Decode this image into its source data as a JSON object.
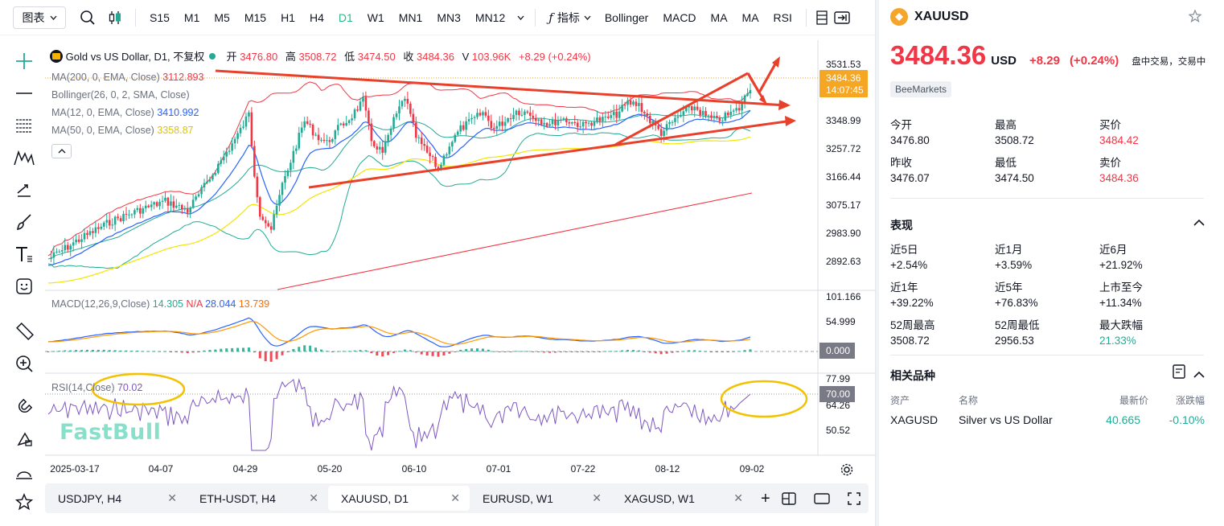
{
  "toolbar": {
    "chart_type": "图表",
    "timeframes": [
      "S15",
      "M1",
      "M5",
      "M15",
      "H1",
      "H4",
      "D1",
      "W1",
      "MN1",
      "MN3",
      "MN12"
    ],
    "active_timeframe": "D1",
    "indicators_label": "指标",
    "indicators": [
      "Bollinger",
      "MACD",
      "MA",
      "MA",
      "RSI"
    ]
  },
  "chart": {
    "title": "Gold vs US Dollar, D1, 不复权",
    "ohlc": {
      "open_label": "开",
      "open": "3476.80",
      "high_label": "高",
      "high": "3508.72",
      "low_label": "低",
      "low": "3474.50",
      "close_label": "收",
      "close": "3484.36",
      "vol_label": "V",
      "vol": "103.96K",
      "change": "+8.29 (+0.24%)"
    },
    "ma200": {
      "label": "MA(200, 0, EMA, Close)",
      "value": "3112.893",
      "color": "#f23645"
    },
    "bollinger": {
      "label": "Bollinger(26, 0, 2, SMA, Close)",
      "value": "",
      "color": "#22ab94"
    },
    "ma12": {
      "label": "MA(12, 0, EMA, Close)",
      "value": "3410.992",
      "color": "#2962ff"
    },
    "ma50": {
      "label": "MA(50, 0, EMA, Close)",
      "value": "3358.87",
      "color": "#f2e600"
    },
    "price_axis": [
      "3531.53",
      "3348.99",
      "3257.72",
      "3166.44",
      "3075.17",
      "2983.90",
      "2892.63"
    ],
    "last_price": "3484.36",
    "countdown": "14:07:45",
    "macd": {
      "label": "MACD(12,26,9,Close)",
      "v1": "14.305",
      "v2": "N/A",
      "v3": "28.044",
      "v4": "13.739",
      "axis": [
        "101.166",
        "54.999"
      ],
      "badge": "0.000"
    },
    "rsi": {
      "label": "RSI(14,Close)",
      "value": "70.02",
      "axis": [
        "77.99",
        "64.26",
        "50.52"
      ],
      "badge": "70.00"
    },
    "date_axis": [
      "2025-03-17",
      "04-07",
      "04-29",
      "05-20",
      "06-10",
      "07-01",
      "07-22",
      "08-12",
      "09-02"
    ],
    "watermark": "FastBull"
  },
  "tabs": [
    {
      "label": "USDJPY, H4"
    },
    {
      "label": "ETH-USDT, H4"
    },
    {
      "label": "XAUUSD, D1"
    },
    {
      "label": "EURUSD, W1"
    },
    {
      "label": "XAGUSD, W1"
    }
  ],
  "active_tab": 2,
  "side": {
    "symbol": "XAUUSD",
    "price": "3484.36",
    "currency": "USD",
    "change": "+8.29",
    "change_pct": "(+0.24%)",
    "status": "盘中交易，交易中",
    "broker": "BeeMarkets",
    "stats": [
      {
        "label": "今开",
        "value": "3476.80",
        "color": "normal"
      },
      {
        "label": "最高",
        "value": "3508.72",
        "color": "normal"
      },
      {
        "label": "买价",
        "value": "3484.42",
        "color": "red"
      },
      {
        "label": "昨收",
        "value": "3476.07",
        "color": "normal"
      },
      {
        "label": "最低",
        "value": "3474.50",
        "color": "normal"
      },
      {
        "label": "卖价",
        "value": "3484.36",
        "color": "red"
      }
    ],
    "performance_title": "表现",
    "performance": [
      {
        "label": "近5日",
        "value": "+2.54%",
        "color": "normal"
      },
      {
        "label": "近1月",
        "value": "+3.59%",
        "color": "normal"
      },
      {
        "label": "近6月",
        "value": "+21.92%",
        "color": "normal"
      },
      {
        "label": "近1年",
        "value": "+39.22%",
        "color": "normal"
      },
      {
        "label": "近5年",
        "value": "+76.83%",
        "color": "normal"
      },
      {
        "label": "上市至今",
        "value": "+11.34%",
        "color": "normal"
      },
      {
        "label": "52周最高",
        "value": "3508.72",
        "color": "normal"
      },
      {
        "label": "52周最低",
        "value": "2956.53",
        "color": "normal"
      },
      {
        "label": "最大跌幅",
        "value": "21.33%",
        "color": "green"
      }
    ],
    "related_title": "相关品种",
    "related_headers": [
      "资产",
      "名称",
      "最新价",
      "涨跌幅"
    ],
    "related": [
      {
        "asset": "XAGUSD",
        "name": "Silver vs US Dollar",
        "price": "40.665",
        "change": "-0.10%"
      }
    ]
  }
}
